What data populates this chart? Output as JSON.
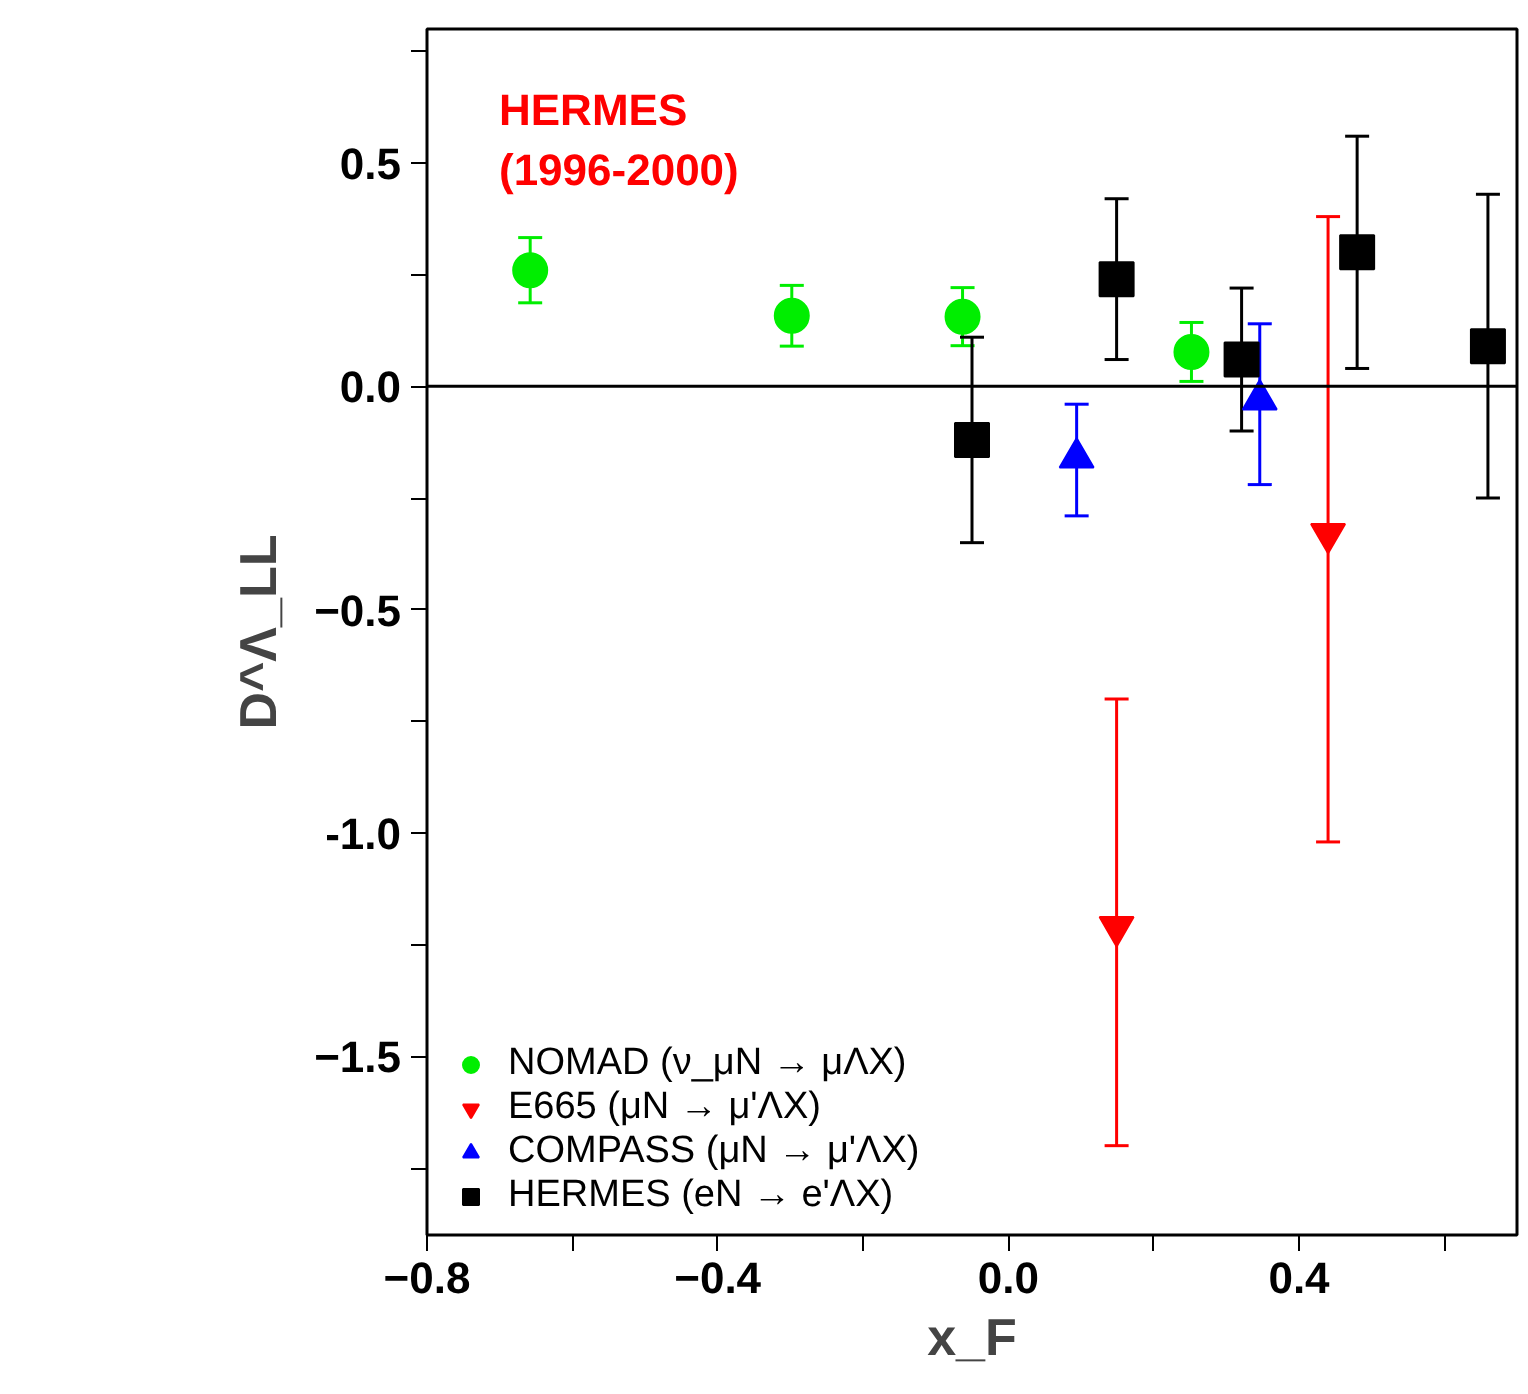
{
  "chart_data": {
    "type": "scatter",
    "xlabel": "x_F",
    "ylabel": "D^Λ_LL",
    "xlim": [
      -0.8,
      0.7
    ],
    "xticks": [
      -0.8,
      {
        "value": -0.6,
        "label": null
      },
      -0.4,
      {
        "value": -0.2,
        "label": null
      },
      {
        "value": 0,
        "label": "0.0"
      },
      {
        "value": 0.2,
        "label": null
      },
      0.4,
      {
        "value": 0.6,
        "label": null
      }
    ],
    "ylim": [
      -1.9,
      0.8
    ],
    "yticks": [
      {
        "value": 0.75,
        "label": null
      },
      0.5,
      {
        "value": 0.25,
        "label": null
      },
      {
        "value": 0,
        "label": "0.0"
      },
      {
        "value": -0.25,
        "label": null
      },
      -0.5,
      {
        "value": -0.75,
        "label": null
      },
      {
        "value": -1,
        "label": "-1.0"
      },
      {
        "value": -1.25,
        "label": null
      },
      -1.5,
      {
        "value": -1.75,
        "label": null
      }
    ],
    "grid": false,
    "legend": "bottom left",
    "annotations": [
      "HERMES\n(1996-2000)"
    ],
    "ref_lines": [
      {
        "axis": "y",
        "value": 0,
        "color": "#000000"
      }
    ],
    "series": [
      {
        "name": "NOMAD (ν_μN → μΛX)",
        "color": "#00ee00",
        "marker": "circle",
        "x": [
          -0.658,
          -0.298,
          -0.063,
          0.252
        ],
        "values": [
          0.26,
          0.158,
          0.156,
          0.077
        ],
        "errors": [
          0.073,
          0.068,
          0.065,
          0.066
        ]
      },
      {
        "name": "E665 (μN → μ'ΛX)",
        "color": "#ff0000",
        "marker": "triangle_down",
        "x": [
          0.149,
          0.44
        ],
        "values": [
          -1.21,
          -0.33
        ],
        "errors": [
          [
            -1.7,
            -0.7
          ],
          [
            -1.02,
            0.38
          ]
        ]
      },
      {
        "name": "COMPASS (μN → μ'ΛX)",
        "color": "#0000ff",
        "marker": "triangle",
        "x": [
          0.094,
          0.346
        ],
        "values": [
          -0.16,
          -0.03
        ],
        "errors": [
          [
            -0.29,
            -0.04
          ],
          [
            -0.22,
            0.14
          ]
        ]
      },
      {
        "name": "HERMES (eN → e'ΛX)",
        "color": "#000000",
        "marker": "square",
        "x": [
          -0.05,
          0.149,
          0.321,
          0.48,
          0.66
        ],
        "values": [
          -0.12,
          0.24,
          0.06,
          0.3,
          0.09
        ],
        "errors": [
          [
            -0.35,
            0.11
          ],
          [
            0.06,
            0.42
          ],
          [
            -0.1,
            0.22
          ],
          [
            0.04,
            0.56
          ],
          [
            -0.25,
            0.43
          ]
        ]
      }
    ]
  }
}
